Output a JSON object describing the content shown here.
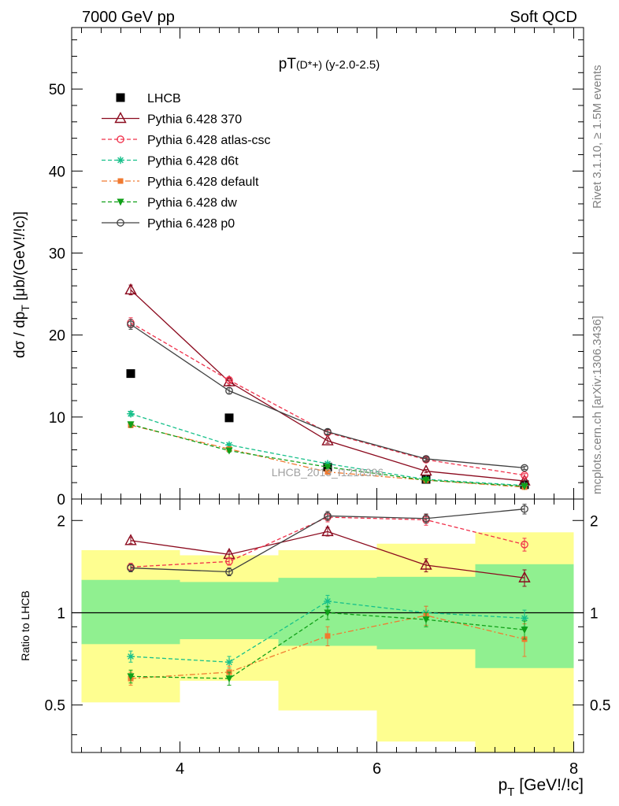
{
  "header": {
    "left": "7000 GeV pp",
    "right": "Soft QCD"
  },
  "side_labels": {
    "rivet": "Rivet 3.1.10, ≥ 1.5M events",
    "mcplots": "mcplots.cern.ch [arXiv:1306.3436]"
  },
  "chart_data": [
    {
      "type": "line",
      "title": "pT(D*+) (y-2.0-2.5)",
      "title_main": "pT",
      "title_paren": "(D*+)",
      "title_tail": "(y-2.0-2.5)",
      "ylabel": "dσ / dp_T [μb/(GeV!/!c)]",
      "ylabel_main": "dσ / dp",
      "ylabel_sub": "T",
      "ylabel_tail": " [μb/(GeV!/!c)]",
      "xlim": [
        2.9,
        8.1
      ],
      "ylim": [
        0,
        57.5
      ],
      "yticks": [
        0,
        10,
        20,
        30,
        40,
        50
      ],
      "ytick_labels": [
        "0",
        "10",
        "20",
        "30",
        "40",
        "50"
      ],
      "watermark": "LHCB_2013_I1218996",
      "x": [
        3.5,
        4.5,
        5.5,
        6.5,
        7.5
      ],
      "legend_position": "top-left",
      "series": [
        {
          "name": "LHCB",
          "style": "data",
          "color": "#000000",
          "marker": "square",
          "values": [
            15.3,
            9.9,
            3.9,
            2.4,
            1.75
          ],
          "errors": [
            0.2,
            0.2,
            0.1,
            0.1,
            0.1
          ]
        },
        {
          "name": "Pythia 6.428 370",
          "style": "solid",
          "color": "#8b0a1e",
          "marker": "triangle-open",
          "values": [
            25.5,
            14.3,
            7.1,
            3.4,
            2.2
          ],
          "errors": [
            0.6,
            0.4,
            0.3,
            0.2,
            0.2
          ]
        },
        {
          "name": "Pythia 6.428 atlas-csc",
          "style": "dashed",
          "color": "#f0304a",
          "marker": "circle-open",
          "values": [
            21.5,
            14.5,
            8.1,
            4.8,
            2.9
          ],
          "errors": [
            0.6,
            0.4,
            0.3,
            0.2,
            0.2
          ]
        },
        {
          "name": "Pythia 6.428 d6t",
          "style": "dashed",
          "color": "#16c08a",
          "marker": "star",
          "values": [
            10.4,
            6.6,
            4.3,
            2.4,
            1.65
          ],
          "errors": [
            0.3,
            0.2,
            0.2,
            0.1,
            0.1
          ]
        },
        {
          "name": "Pythia 6.428 default",
          "style": "dashdot",
          "color": "#f07a30",
          "marker": "square-filled",
          "values": [
            9.0,
            6.1,
            3.3,
            2.3,
            1.45
          ],
          "errors": [
            0.3,
            0.2,
            0.2,
            0.1,
            0.1
          ]
        },
        {
          "name": "Pythia 6.428 dw",
          "style": "dashed",
          "color": "#10a018",
          "marker": "triangle-down-filled",
          "values": [
            9.1,
            5.9,
            3.9,
            2.3,
            1.55
          ],
          "errors": [
            0.3,
            0.2,
            0.2,
            0.1,
            0.1
          ]
        },
        {
          "name": "Pythia 6.428 p0",
          "style": "solid",
          "color": "#404040",
          "marker": "circle-open",
          "values": [
            21.3,
            13.2,
            8.2,
            4.9,
            3.8
          ],
          "errors": [
            0.6,
            0.4,
            0.3,
            0.2,
            0.2
          ]
        }
      ]
    },
    {
      "type": "line",
      "title": "",
      "ylabel": "Ratio to LHCB",
      "xlabel": "p_T [GeV!/!c]",
      "xlabel_main": "p",
      "xlabel_sub": "T",
      "xlabel_tail": " [GeV!/!c]",
      "xlim": [
        2.9,
        8.1
      ],
      "ylim": [
        0.35,
        2.35
      ],
      "ylog": true,
      "xticks": [
        4,
        6,
        8
      ],
      "xtick_labels": [
        "4",
        "6",
        "8"
      ],
      "yticks": [
        0.5,
        1,
        2
      ],
      "ytick_labels": [
        "0.5",
        "1",
        "2"
      ],
      "x": [
        3.5,
        4.5,
        5.5,
        6.5,
        7.5
      ],
      "bands": {
        "bins": [
          [
            3,
            4
          ],
          [
            4,
            5
          ],
          [
            5,
            6
          ],
          [
            6,
            7
          ],
          [
            7,
            8
          ]
        ],
        "inner": [
          [
            0.79,
            1.28
          ],
          [
            0.82,
            1.26
          ],
          [
            0.78,
            1.3
          ],
          [
            0.76,
            1.31
          ],
          [
            0.66,
            1.44
          ]
        ],
        "outer": [
          [
            0.51,
            1.6
          ],
          [
            0.6,
            1.54
          ],
          [
            0.48,
            1.6
          ],
          [
            0.38,
            1.68
          ],
          [
            0.33,
            1.83
          ]
        ],
        "inner_color": "#90f090",
        "outer_color": "#fefe90"
      },
      "series": [
        {
          "name": "Pythia 6.428 370",
          "values": [
            1.72,
            1.55,
            1.84,
            1.43,
            1.3
          ],
          "errors": [
            0.04,
            0.04,
            0.06,
            0.07,
            0.08
          ]
        },
        {
          "name": "Pythia 6.428 atlas-csc",
          "values": [
            1.41,
            1.47,
            2.05,
            2.01,
            1.67
          ],
          "errors": [
            0.04,
            0.04,
            0.07,
            0.08,
            0.08
          ]
        },
        {
          "name": "Pythia 6.428 d6t",
          "values": [
            0.72,
            0.69,
            1.09,
            1.0,
            0.96
          ],
          "errors": [
            0.03,
            0.03,
            0.05,
            0.05,
            0.06
          ]
        },
        {
          "name": "Pythia 6.428 default",
          "values": [
            0.61,
            0.64,
            0.84,
            0.98,
            0.82
          ],
          "errors": [
            0.03,
            0.03,
            0.06,
            0.07,
            0.1
          ]
        },
        {
          "name": "Pythia 6.428 dw",
          "values": [
            0.62,
            0.61,
            1.0,
            0.95,
            0.88
          ],
          "errors": [
            0.03,
            0.03,
            0.05,
            0.05,
            0.06
          ]
        },
        {
          "name": "Pythia 6.428 p0",
          "values": [
            1.4,
            1.36,
            2.07,
            2.03,
            2.18
          ],
          "errors": [
            0.04,
            0.04,
            0.07,
            0.07,
            0.08
          ]
        }
      ]
    }
  ]
}
